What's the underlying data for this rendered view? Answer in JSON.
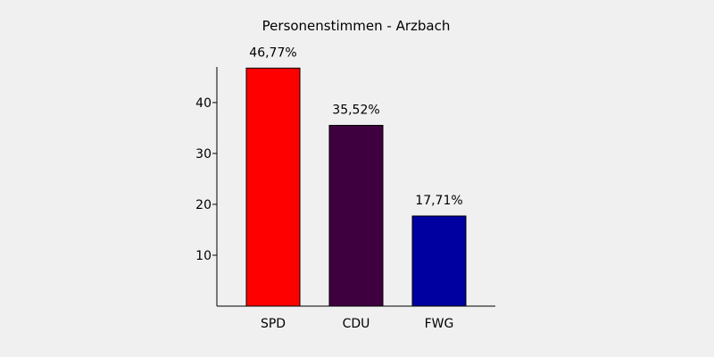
{
  "chart_data": {
    "type": "bar",
    "title": "Personenstimmen - Arzbach",
    "categories": [
      "SPD",
      "CDU",
      "FWG"
    ],
    "values": [
      46.77,
      35.52,
      17.71
    ],
    "value_labels": [
      "46,77%",
      "35,52%",
      "17,71%"
    ],
    "colors": [
      "#ff0000",
      "#3f003f",
      "#0000a0"
    ],
    "yticks": [
      10,
      20,
      30,
      40
    ],
    "ylim": [
      0,
      47
    ],
    "xlabel": "",
    "ylabel": "",
    "grid": false,
    "legend": "none"
  },
  "colors": {
    "background": "#f0f0f0",
    "axis": "#000000",
    "bar_outline": "#000000"
  }
}
